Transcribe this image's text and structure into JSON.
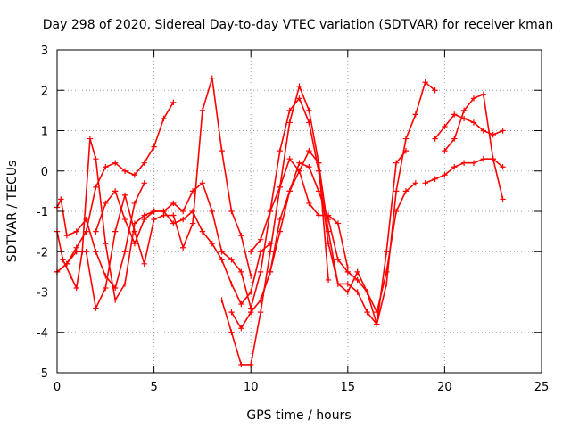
{
  "chart_data": {
    "type": "scatter",
    "title": "Day 298 of 2020, Sidereal Day-to-day VTEC variation (SDTVAR) for receiver kman",
    "xlabel": "GPS time / hours",
    "ylabel": "SDTVAR / TECUs",
    "xlim": [
      0,
      25
    ],
    "ylim": [
      -5,
      3
    ],
    "xticks": [
      0,
      5,
      10,
      15,
      20,
      25
    ],
    "yticks": [
      -5,
      -4,
      -3,
      -2,
      -1,
      0,
      1,
      2,
      3
    ],
    "grid": true,
    "marker": "+",
    "color": "#ff0000",
    "series": [
      {
        "x": [
          0.0,
          0.2,
          0.5,
          1.0,
          1.5,
          2.0,
          2.5,
          3.0,
          3.5,
          4.0,
          4.5
        ],
        "y": [
          -0.9,
          -0.7,
          -1.6,
          -1.5,
          -1.2,
          -2.0,
          -2.6,
          -2.9,
          -2.0,
          -0.8,
          -0.3
        ]
      },
      {
        "x": [
          0.0,
          0.5,
          1.0,
          1.5,
          2.0,
          2.5,
          3.0,
          3.5,
          4.0,
          4.5,
          5.0,
          5.5,
          6.0
        ],
        "y": [
          -2.5,
          -2.3,
          -1.9,
          -1.5,
          -0.4,
          0.1,
          0.2,
          0.0,
          -0.1,
          0.2,
          0.6,
          1.3,
          1.7
        ]
      },
      {
        "x": [
          0.0,
          0.3,
          0.7,
          1.0,
          1.3,
          1.7,
          2.0,
          2.5,
          3.0,
          3.5,
          4.0,
          4.5,
          5.0
        ],
        "y": [
          -1.5,
          -2.2,
          -2.6,
          -2.9,
          -2.0,
          0.8,
          0.3,
          -1.8,
          -3.2,
          -2.8,
          -1.3,
          -1.1,
          -1.0
        ]
      },
      {
        "x": [
          0.0,
          0.5,
          1.0,
          1.5,
          2.0,
          2.5,
          3.0,
          3.5,
          4.0,
          4.5,
          5.0,
          5.5,
          6.0,
          6.5,
          7.0,
          7.5,
          8.0,
          8.5,
          9.0,
          9.5,
          10.0
        ],
        "y": [
          -2.5,
          -2.3,
          -2.0,
          -2.0,
          -3.4,
          -2.9,
          -1.5,
          -0.6,
          -1.5,
          -2.3,
          -1.2,
          -1.1,
          -1.1,
          -1.9,
          -1.3,
          1.5,
          2.3,
          0.5,
          -1.0,
          -1.6,
          -2.6
        ]
      },
      {
        "x": [
          2.0,
          2.5,
          3.0,
          3.5,
          4.0,
          4.5,
          5.0,
          5.5,
          6.0,
          6.5,
          7.0,
          7.5,
          8.0,
          8.5,
          9.0,
          9.5,
          10.0,
          10.5,
          11.0,
          11.5,
          12.0,
          12.5,
          13.0,
          13.5,
          14.0,
          14.5,
          15.0
        ],
        "y": [
          -1.5,
          -0.8,
          -0.5,
          -1.2,
          -1.8,
          -1.2,
          -1.0,
          -1.0,
          -0.8,
          -1.0,
          -0.5,
          -0.3,
          -1.0,
          -2.0,
          -2.2,
          -2.5,
          -3.4,
          -2.5,
          -1.0,
          -0.4,
          0.3,
          0.0,
          -0.8,
          -1.1,
          -1.1,
          -1.3,
          -2.4
        ]
      },
      {
        "x": [
          5.0,
          5.5,
          6.0,
          6.5,
          7.0,
          7.5,
          8.0,
          8.5,
          9.0,
          9.5,
          10.0,
          10.5,
          11.0
        ],
        "y": [
          -1.0,
          -1.0,
          -1.3,
          -1.2,
          -1.0,
          -1.5,
          -1.8,
          -2.2,
          -2.8,
          -3.3,
          -3.0,
          -2.0,
          -1.8
        ]
      },
      {
        "x": [
          8.5,
          9.0,
          9.5,
          10.0,
          10.5,
          11.0,
          11.5,
          12.0,
          12.5,
          13.0,
          13.5,
          14.0,
          14.5,
          15.0,
          15.5,
          16.0,
          16.5,
          17.0,
          17.5,
          18.0,
          18.5,
          19.0,
          19.5
        ],
        "y": [
          -3.2,
          -4.0,
          -4.8,
          -4.8,
          -3.5,
          -2.0,
          -0.4,
          1.2,
          2.1,
          1.5,
          0.2,
          -1.5,
          -2.8,
          -3.0,
          -2.5,
          -3.0,
          -3.8,
          -2.8,
          -0.5,
          0.8,
          1.4,
          2.2,
          2.0
        ]
      },
      {
        "x": [
          9.0,
          9.5,
          10.0,
          10.5,
          11.0,
          11.5,
          12.0,
          12.5,
          13.0,
          13.5,
          14.0,
          14.5,
          15.0,
          15.5,
          16.0,
          16.5,
          17.0,
          17.5,
          18.0,
          18.5
        ],
        "y": [
          -3.5,
          -3.9,
          -3.5,
          -3.2,
          -2.5,
          -1.5,
          -0.5,
          0.2,
          0.1,
          -0.5,
          -1.2,
          -2.2,
          -2.5,
          -2.7,
          -3.0,
          -3.5,
          -2.5,
          -1.0,
          -0.5,
          -0.3
        ]
      },
      {
        "x": [
          10.0,
          10.5,
          11.0,
          11.5,
          12.0,
          12.5,
          13.0,
          13.5,
          14.0,
          14.5,
          15.0,
          15.5,
          16.0,
          16.5,
          17.0,
          17.5,
          18.0
        ],
        "y": [
          -2.0,
          -1.7,
          -1.0,
          0.5,
          1.5,
          1.8,
          1.2,
          0.0,
          -1.8,
          -2.8,
          -2.8,
          -3.0,
          -3.5,
          -3.8,
          -2.0,
          0.2,
          0.5
        ]
      },
      {
        "x": [
          10.5,
          11.0,
          11.5,
          12.0,
          12.5,
          13.0,
          13.5,
          14.0
        ],
        "y": [
          -3.2,
          -2.5,
          -1.2,
          -0.5,
          0.0,
          0.5,
          0.2,
          -2.7
        ]
      },
      {
        "x": [
          19.0,
          19.5,
          20.0,
          20.5,
          21.0,
          21.5,
          22.0,
          22.5,
          23.0
        ],
        "y": [
          -0.3,
          -0.2,
          -0.1,
          0.1,
          0.2,
          0.2,
          0.3,
          0.3,
          0.1
        ]
      },
      {
        "x": [
          19.5,
          20.0,
          20.5,
          21.0,
          21.5,
          22.0,
          22.5,
          23.0
        ],
        "y": [
          0.8,
          1.1,
          1.4,
          1.3,
          1.2,
          1.0,
          0.9,
          1.0
        ]
      },
      {
        "x": [
          20.0,
          20.5,
          21.0,
          21.5,
          22.0,
          22.5,
          23.0
        ],
        "y": [
          0.5,
          0.8,
          1.5,
          1.8,
          1.9,
          0.3,
          -0.7
        ]
      }
    ]
  }
}
